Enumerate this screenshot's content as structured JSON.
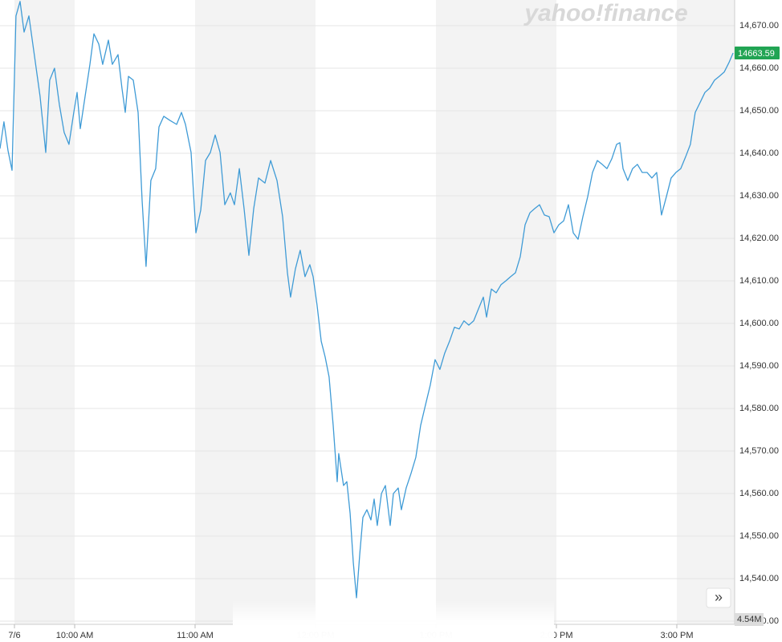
{
  "logo": "yahoo!finance",
  "nav_button": "»",
  "chart_data": {
    "type": "line",
    "series": [
      {
        "name": "NASDAQ",
        "color": "#3f9bd6",
        "x": [
          9.38,
          9.413,
          9.447,
          9.48,
          9.513,
          9.547,
          9.58,
          9.62,
          9.667,
          9.713,
          9.76,
          9.793,
          9.833,
          9.873,
          9.913,
          9.953,
          9.993,
          10.02,
          10.047,
          10.087,
          10.127,
          10.16,
          10.2,
          10.233,
          10.28,
          10.313,
          10.36,
          10.393,
          10.42,
          10.447,
          10.487,
          10.527,
          10.56,
          10.593,
          10.633,
          10.673,
          10.7,
          10.74,
          10.793,
          10.847,
          10.887,
          10.92,
          10.967,
          11.007,
          11.047,
          11.087,
          11.127,
          11.167,
          11.207,
          11.247,
          11.293,
          11.327,
          11.367,
          11.407,
          11.447,
          11.487,
          11.527,
          11.58,
          11.627,
          11.68,
          11.727,
          11.767,
          11.793,
          11.833,
          11.873,
          11.913,
          11.953,
          11.98,
          12.013,
          12.047,
          12.08,
          12.113,
          12.147,
          12.18,
          12.193,
          12.233,
          12.26,
          12.287,
          12.313,
          12.34,
          12.367,
          12.393,
          12.427,
          12.46,
          12.487,
          12.513,
          12.547,
          12.58,
          12.62,
          12.647,
          12.687,
          12.713,
          12.753,
          12.793,
          12.833,
          12.873,
          12.913,
          12.953,
          12.993,
          13.033,
          13.073,
          13.113,
          13.153,
          13.193,
          13.233,
          13.273,
          13.313,
          13.353,
          13.393,
          13.42,
          13.46,
          13.5,
          13.54,
          13.58,
          13.62,
          13.66,
          13.7,
          13.74,
          13.78,
          13.82,
          13.86,
          13.9,
          13.94,
          13.98,
          14.02,
          14.06,
          14.1,
          14.14,
          14.18,
          14.22,
          14.26,
          14.3,
          14.34,
          14.38,
          14.42,
          14.46,
          14.5,
          14.527,
          14.553,
          14.593,
          14.633,
          14.673,
          14.713,
          14.753,
          14.793,
          14.833,
          14.873,
          14.913,
          14.953,
          14.993,
          15.033,
          15.073,
          15.113,
          15.153,
          15.193,
          15.233,
          15.273,
          15.313,
          15.353,
          15.393,
          15.433,
          15.467
        ],
        "values": [
          14641.1,
          14647.4,
          14640.6,
          14636.0,
          14672.3,
          14675.7,
          14668.5,
          14672.3,
          14662.8,
          14653.4,
          14640.2,
          14657.2,
          14660.0,
          14651.5,
          14644.9,
          14642.1,
          14649.6,
          14654.3,
          14645.8,
          14653.4,
          14660.9,
          14668.1,
          14665.7,
          14660.9,
          14666.6,
          14660.9,
          14663.2,
          14655.3,
          14649.6,
          14658.1,
          14657.2,
          14649.6,
          14628.9,
          14613.4,
          14633.6,
          14636.4,
          14646.2,
          14648.7,
          14647.7,
          14646.8,
          14649.6,
          14646.8,
          14640.2,
          14621.3,
          14626.6,
          14638.3,
          14640.2,
          14644.3,
          14640.2,
          14627.9,
          14630.7,
          14627.9,
          14636.4,
          14627.0,
          14616.0,
          14627.0,
          14634.2,
          14633.0,
          14638.3,
          14633.6,
          14625.1,
          14611.9,
          14606.2,
          14612.8,
          14617.2,
          14611.0,
          14613.8,
          14611.0,
          14604.3,
          14595.8,
          14592.1,
          14587.4,
          14576.0,
          14562.8,
          14569.4,
          14561.9,
          14562.8,
          14555.3,
          14543.9,
          14535.5,
          14545.8,
          14554.4,
          14556.2,
          14553.8,
          14558.7,
          14552.5,
          14560.0,
          14561.9,
          14552.5,
          14560.0,
          14561.3,
          14556.2,
          14561.3,
          14564.7,
          14568.5,
          14576.0,
          14580.8,
          14585.5,
          14591.5,
          14589.2,
          14593.0,
          14595.8,
          14599.1,
          14598.7,
          14600.6,
          14599.6,
          14600.6,
          14603.4,
          14606.2,
          14601.5,
          14608.1,
          14607.2,
          14609.1,
          14610.0,
          14611.0,
          14611.9,
          14615.7,
          14623.2,
          14626.0,
          14627.0,
          14627.9,
          14625.5,
          14625.1,
          14621.3,
          14623.2,
          14624.1,
          14627.9,
          14621.3,
          14619.8,
          14625.1,
          14629.8,
          14635.5,
          14638.3,
          14637.4,
          14636.4,
          14638.7,
          14642.1,
          14642.5,
          14636.4,
          14633.6,
          14636.4,
          14637.4,
          14635.5,
          14635.5,
          14634.2,
          14635.5,
          14625.5,
          14629.8,
          14634.2,
          14635.5,
          14636.4,
          14639.2,
          14642.1,
          14649.6,
          14651.9,
          14654.3,
          14655.3,
          14657.2,
          14658.1,
          14659.1,
          14661.3,
          14663.59
        ]
      }
    ],
    "current_price": 14663.59,
    "volume_label": "4.54M",
    "xlim": [
      9.38,
      15.48
    ],
    "xticks": [
      {
        "value": 9.5,
        "label": "7/6"
      },
      {
        "value": 10,
        "label": "10:00 AM"
      },
      {
        "value": 11,
        "label": "11:00 AM"
      },
      {
        "value": 12,
        "label": "12:00 PM"
      },
      {
        "value": 13,
        "label": "1:00 PM"
      },
      {
        "value": 14,
        "label": "2:00 PM"
      },
      {
        "value": 15,
        "label": "3:00 PM"
      }
    ],
    "ylim": [
      14529.25,
      14676.04
    ],
    "yticks": [
      {
        "value": 14530,
        "label": "14,530.00"
      },
      {
        "value": 14540,
        "label": "14,540.00"
      },
      {
        "value": 14550,
        "label": "14,550.00"
      },
      {
        "value": 14560,
        "label": "14,560.00"
      },
      {
        "value": 14570,
        "label": "14,570.00"
      },
      {
        "value": 14580,
        "label": "14,580.00"
      },
      {
        "value": 14590,
        "label": "14,590.00"
      },
      {
        "value": 14600,
        "label": "14,600.00"
      },
      {
        "value": 14610,
        "label": "14,610.00"
      },
      {
        "value": 14620,
        "label": "14,620.00"
      },
      {
        "value": 14630,
        "label": "14,630.00"
      },
      {
        "value": 14640,
        "label": "14,640.00"
      },
      {
        "value": 14650,
        "label": "14,650.00"
      },
      {
        "value": 14660,
        "label": "14,660.00"
      },
      {
        "value": 14670,
        "label": "14,670.00"
      }
    ],
    "grid": true
  }
}
